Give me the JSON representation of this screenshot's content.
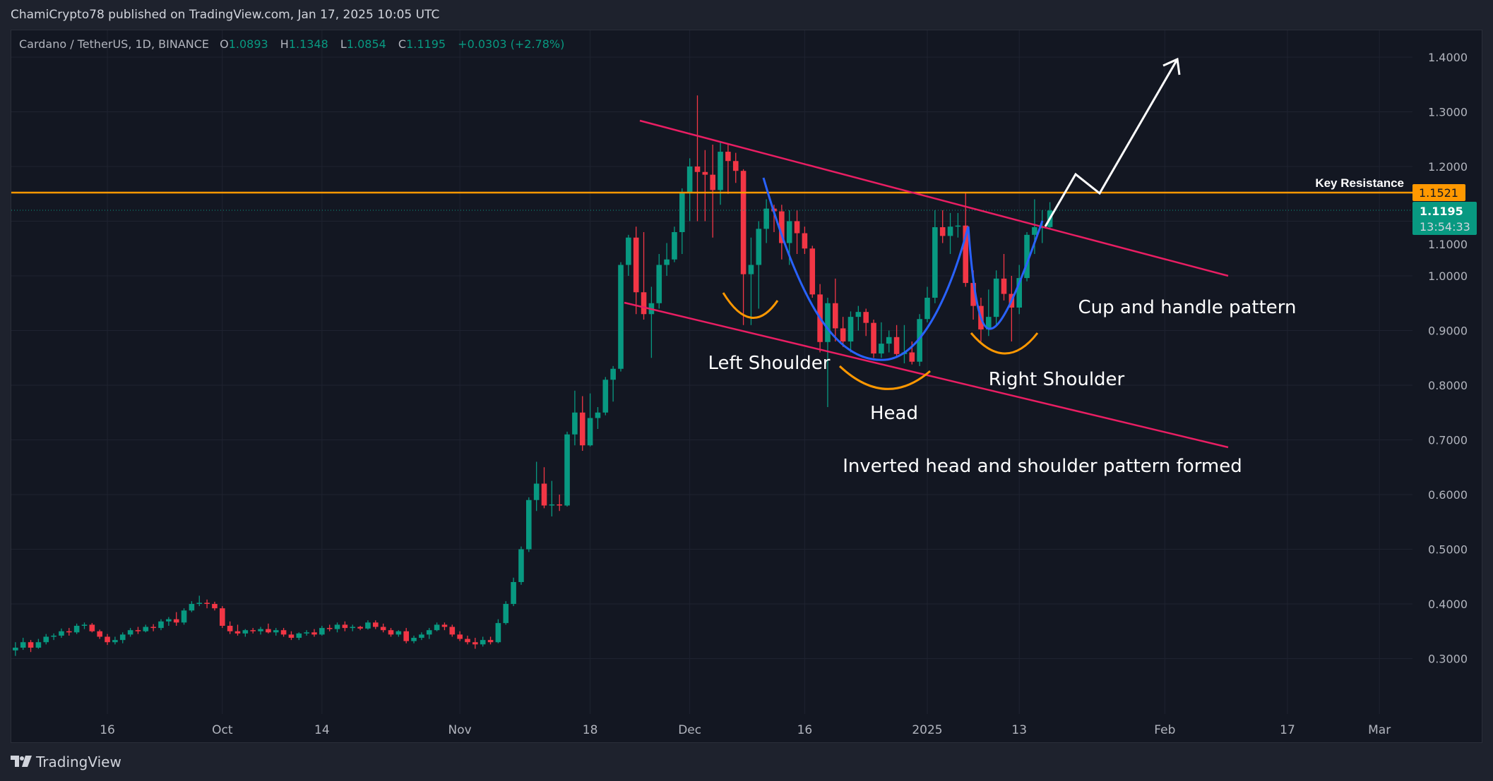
{
  "header": {
    "published": "ChamiCrypto78 published on TradingView.com, Jan 17, 2025 10:05 UTC"
  },
  "legend": {
    "symbol": "Cardano / TetherUS, 1D, BINANCE",
    "o_label": "O",
    "o": "1.0893",
    "h_label": "H",
    "h": "1.1348",
    "l_label": "L",
    "l": "1.0854",
    "c_label": "C",
    "c": "1.1195",
    "change": "+0.0303 (+2.78%)"
  },
  "price_axis": {
    "labels": [
      "1.4000",
      "1.3000",
      "1.2000",
      "1.1000",
      "1.0000",
      "0.9000",
      "0.8000",
      "0.7000",
      "0.6000",
      "0.5000",
      "0.4000",
      "0.3000"
    ],
    "key_level_tag": "1.1521",
    "last_price_tag": "1.1195",
    "countdown": "13:54:33"
  },
  "time_axis": {
    "labels": [
      {
        "text": "16",
        "date": "2024-09-16"
      },
      {
        "text": "Oct",
        "date": "2024-10-01"
      },
      {
        "text": "14",
        "date": "2024-10-14"
      },
      {
        "text": "Nov",
        "date": "2024-11-01"
      },
      {
        "text": "18",
        "date": "2024-11-18"
      },
      {
        "text": "Dec",
        "date": "2024-12-01"
      },
      {
        "text": "16",
        "date": "2024-12-16"
      },
      {
        "text": "2025",
        "date": "2025-01-01"
      },
      {
        "text": "13",
        "date": "2025-01-13"
      },
      {
        "text": "Feb",
        "date": "2025-02-01"
      },
      {
        "text": "17",
        "date": "2025-02-17"
      },
      {
        "text": "Mar",
        "date": "2025-03-01"
      }
    ]
  },
  "annotations": {
    "key_resistance": "Key Resistance",
    "left_shoulder": "Left Shoulder",
    "head": "Head",
    "right_shoulder": "Right Shoulder",
    "cup_handle": "Cup and handle pattern",
    "ihs": "Inverted head and shoulder pattern formed"
  },
  "colors": {
    "up": "#089981",
    "down": "#f23645",
    "resistance": "#ff9800",
    "channel": "#e91e63",
    "cup": "#2962ff",
    "projection": "#ffffff"
  },
  "footer": {
    "brand": "TradingView"
  },
  "chart_data": {
    "type": "candlestick",
    "ylim": [
      0.22,
      1.455
    ],
    "xlim": [
      "2024-09-03",
      "2025-03-12"
    ],
    "grid": true,
    "key_resistance": 1.1521,
    "last_price": 1.1195,
    "candles": [
      [
        "2024-09-04",
        0.315,
        0.33,
        0.305,
        0.32
      ],
      [
        "2024-09-05",
        0.32,
        0.338,
        0.316,
        0.33
      ],
      [
        "2024-09-06",
        0.33,
        0.334,
        0.312,
        0.32
      ],
      [
        "2024-09-07",
        0.32,
        0.336,
        0.318,
        0.33
      ],
      [
        "2024-09-08",
        0.33,
        0.345,
        0.326,
        0.34
      ],
      [
        "2024-09-09",
        0.34,
        0.346,
        0.334,
        0.342
      ],
      [
        "2024-09-10",
        0.342,
        0.355,
        0.338,
        0.35
      ],
      [
        "2024-09-11",
        0.35,
        0.356,
        0.342,
        0.348
      ],
      [
        "2024-09-12",
        0.348,
        0.364,
        0.345,
        0.36
      ],
      [
        "2024-09-13",
        0.36,
        0.366,
        0.354,
        0.362
      ],
      [
        "2024-09-14",
        0.362,
        0.365,
        0.348,
        0.35
      ],
      [
        "2024-09-15",
        0.35,
        0.353,
        0.336,
        0.34
      ],
      [
        "2024-09-16",
        0.34,
        0.345,
        0.325,
        0.33
      ],
      [
        "2024-09-17",
        0.33,
        0.34,
        0.326,
        0.334
      ],
      [
        "2024-09-18",
        0.334,
        0.348,
        0.328,
        0.344
      ],
      [
        "2024-09-19",
        0.344,
        0.356,
        0.34,
        0.352
      ],
      [
        "2024-09-20",
        0.352,
        0.358,
        0.345,
        0.35
      ],
      [
        "2024-09-21",
        0.35,
        0.362,
        0.348,
        0.358
      ],
      [
        "2024-09-22",
        0.358,
        0.363,
        0.35,
        0.356
      ],
      [
        "2024-09-23",
        0.356,
        0.372,
        0.352,
        0.368
      ],
      [
        "2024-09-24",
        0.368,
        0.376,
        0.36,
        0.372
      ],
      [
        "2024-09-25",
        0.372,
        0.385,
        0.36,
        0.366
      ],
      [
        "2024-09-26",
        0.366,
        0.392,
        0.362,
        0.388
      ],
      [
        "2024-09-27",
        0.388,
        0.405,
        0.385,
        0.4
      ],
      [
        "2024-09-28",
        0.4,
        0.415,
        0.396,
        0.402
      ],
      [
        "2024-09-29",
        0.402,
        0.408,
        0.392,
        0.4
      ],
      [
        "2024-09-30",
        0.4,
        0.404,
        0.388,
        0.392
      ],
      [
        "2024-10-01",
        0.392,
        0.396,
        0.356,
        0.36
      ],
      [
        "2024-10-02",
        0.36,
        0.368,
        0.345,
        0.35
      ],
      [
        "2024-10-03",
        0.35,
        0.362,
        0.342,
        0.346
      ],
      [
        "2024-10-04",
        0.346,
        0.354,
        0.34,
        0.352
      ],
      [
        "2024-10-05",
        0.352,
        0.356,
        0.346,
        0.35
      ],
      [
        "2024-10-06",
        0.35,
        0.358,
        0.344,
        0.354
      ],
      [
        "2024-10-07",
        0.354,
        0.364,
        0.346,
        0.348
      ],
      [
        "2024-10-08",
        0.348,
        0.356,
        0.342,
        0.352
      ],
      [
        "2024-10-09",
        0.352,
        0.356,
        0.34,
        0.344
      ],
      [
        "2024-10-10",
        0.344,
        0.35,
        0.334,
        0.338
      ],
      [
        "2024-10-11",
        0.338,
        0.348,
        0.334,
        0.346
      ],
      [
        "2024-10-12",
        0.346,
        0.352,
        0.342,
        0.348
      ],
      [
        "2024-10-13",
        0.348,
        0.354,
        0.34,
        0.344
      ],
      [
        "2024-10-14",
        0.344,
        0.36,
        0.342,
        0.356
      ],
      [
        "2024-10-15",
        0.356,
        0.362,
        0.35,
        0.354
      ],
      [
        "2024-10-16",
        0.354,
        0.366,
        0.348,
        0.362
      ],
      [
        "2024-10-17",
        0.362,
        0.368,
        0.35,
        0.356
      ],
      [
        "2024-10-18",
        0.356,
        0.362,
        0.35,
        0.358
      ],
      [
        "2024-10-19",
        0.358,
        0.36,
        0.352,
        0.355
      ],
      [
        "2024-10-20",
        0.355,
        0.37,
        0.353,
        0.366
      ],
      [
        "2024-10-21",
        0.366,
        0.37,
        0.354,
        0.358
      ],
      [
        "2024-10-22",
        0.358,
        0.364,
        0.348,
        0.352
      ],
      [
        "2024-10-23",
        0.352,
        0.356,
        0.34,
        0.344
      ],
      [
        "2024-10-24",
        0.344,
        0.352,
        0.34,
        0.35
      ],
      [
        "2024-10-25",
        0.35,
        0.356,
        0.328,
        0.332
      ],
      [
        "2024-10-26",
        0.332,
        0.342,
        0.328,
        0.338
      ],
      [
        "2024-10-27",
        0.338,
        0.348,
        0.334,
        0.344
      ],
      [
        "2024-10-28",
        0.344,
        0.356,
        0.336,
        0.352
      ],
      [
        "2024-10-29",
        0.352,
        0.366,
        0.35,
        0.362
      ],
      [
        "2024-10-30",
        0.362,
        0.366,
        0.352,
        0.358
      ],
      [
        "2024-10-31",
        0.358,
        0.362,
        0.34,
        0.344
      ],
      [
        "2024-11-01",
        0.344,
        0.35,
        0.332,
        0.336
      ],
      [
        "2024-11-02",
        0.336,
        0.342,
        0.326,
        0.33
      ],
      [
        "2024-11-03",
        0.33,
        0.338,
        0.318,
        0.326
      ],
      [
        "2024-11-04",
        0.326,
        0.34,
        0.322,
        0.334
      ],
      [
        "2024-11-05",
        0.334,
        0.34,
        0.326,
        0.33
      ],
      [
        "2024-11-06",
        0.33,
        0.372,
        0.328,
        0.365
      ],
      [
        "2024-11-07",
        0.365,
        0.405,
        0.362,
        0.4
      ],
      [
        "2024-11-08",
        0.4,
        0.448,
        0.396,
        0.44
      ],
      [
        "2024-11-09",
        0.44,
        0.505,
        0.435,
        0.5
      ],
      [
        "2024-11-10",
        0.5,
        0.595,
        0.495,
        0.59
      ],
      [
        "2024-11-11",
        0.59,
        0.66,
        0.57,
        0.62
      ],
      [
        "2024-11-12",
        0.62,
        0.65,
        0.575,
        0.58
      ],
      [
        "2024-11-13",
        0.58,
        0.625,
        0.56,
        0.582
      ],
      [
        "2024-11-14",
        0.582,
        0.6,
        0.57,
        0.58
      ],
      [
        "2024-11-15",
        0.58,
        0.715,
        0.578,
        0.71
      ],
      [
        "2024-11-16",
        0.71,
        0.79,
        0.69,
        0.75
      ],
      [
        "2024-11-17",
        0.75,
        0.78,
        0.68,
        0.69
      ],
      [
        "2024-11-18",
        0.69,
        0.785,
        0.688,
        0.74
      ],
      [
        "2024-11-19",
        0.74,
        0.76,
        0.72,
        0.75
      ],
      [
        "2024-11-20",
        0.75,
        0.815,
        0.745,
        0.81
      ],
      [
        "2024-11-21",
        0.81,
        0.835,
        0.77,
        0.83
      ],
      [
        "2024-11-22",
        0.83,
        1.025,
        0.825,
        1.02
      ],
      [
        "2024-11-23",
        1.02,
        1.075,
        1.0,
        1.07
      ],
      [
        "2024-11-24",
        1.07,
        1.09,
        0.93,
        0.97
      ],
      [
        "2024-11-25",
        0.97,
        1.08,
        0.92,
        0.93
      ],
      [
        "2024-11-26",
        0.93,
        0.98,
        0.85,
        0.95
      ],
      [
        "2024-11-27",
        0.95,
        1.04,
        0.94,
        1.02
      ],
      [
        "2024-11-28",
        1.02,
        1.06,
        1.0,
        1.03
      ],
      [
        "2024-11-29",
        1.03,
        1.09,
        1.025,
        1.08
      ],
      [
        "2024-11-30",
        1.08,
        1.16,
        1.04,
        1.152
      ],
      [
        "2024-12-01",
        1.152,
        1.215,
        1.1,
        1.2
      ],
      [
        "2024-12-02",
        1.2,
        1.33,
        1.1,
        1.19
      ],
      [
        "2024-12-03",
        1.19,
        1.23,
        1.1,
        1.185
      ],
      [
        "2024-12-04",
        1.185,
        1.24,
        1.07,
        1.157
      ],
      [
        "2024-12-05",
        1.157,
        1.245,
        1.13,
        1.227
      ],
      [
        "2024-12-06",
        1.227,
        1.24,
        1.15,
        1.21
      ],
      [
        "2024-12-07",
        1.21,
        1.225,
        1.17,
        1.192
      ],
      [
        "2024-12-08",
        1.192,
        1.195,
        0.91,
        1.003
      ],
      [
        "2024-12-09",
        1.003,
        1.07,
        0.91,
        1.02
      ],
      [
        "2024-12-10",
        1.02,
        1.1,
        0.94,
        1.086
      ],
      [
        "2024-12-11",
        1.086,
        1.14,
        1.06,
        1.123
      ],
      [
        "2024-12-12",
        1.123,
        1.13,
        1.08,
        1.118
      ],
      [
        "2024-12-13",
        1.118,
        1.13,
        1.03,
        1.06
      ],
      [
        "2024-12-14",
        1.06,
        1.12,
        1.02,
        1.1
      ],
      [
        "2024-12-15",
        1.1,
        1.12,
        1.04,
        1.078
      ],
      [
        "2024-12-16",
        1.078,
        1.09,
        1.04,
        1.05
      ],
      [
        "2024-12-17",
        1.05,
        1.055,
        0.96,
        0.966
      ],
      [
        "2024-12-18",
        0.966,
        0.985,
        0.86,
        0.879
      ],
      [
        "2024-12-19",
        0.879,
        0.96,
        0.76,
        0.95
      ],
      [
        "2024-12-20",
        0.95,
        0.995,
        0.88,
        0.904
      ],
      [
        "2024-12-21",
        0.904,
        0.925,
        0.87,
        0.88
      ],
      [
        "2024-12-22",
        0.88,
        0.935,
        0.86,
        0.925
      ],
      [
        "2024-12-23",
        0.925,
        0.945,
        0.9,
        0.934
      ],
      [
        "2024-12-24",
        0.934,
        0.94,
        0.89,
        0.914
      ],
      [
        "2024-12-25",
        0.914,
        0.92,
        0.85,
        0.858
      ],
      [
        "2024-12-26",
        0.858,
        0.915,
        0.85,
        0.876
      ],
      [
        "2024-12-27",
        0.876,
        0.9,
        0.86,
        0.888
      ],
      [
        "2024-12-28",
        0.888,
        0.91,
        0.85,
        0.857
      ],
      [
        "2024-12-29",
        0.857,
        0.91,
        0.84,
        0.86
      ],
      [
        "2024-12-30",
        0.86,
        0.88,
        0.838,
        0.843
      ],
      [
        "2024-12-31",
        0.843,
        0.93,
        0.835,
        0.921
      ],
      [
        "2025-01-01",
        0.921,
        0.98,
        0.915,
        0.96
      ],
      [
        "2025-01-02",
        0.96,
        1.12,
        0.95,
        1.089
      ],
      [
        "2025-01-03",
        1.089,
        1.12,
        1.06,
        1.073
      ],
      [
        "2025-01-04",
        1.073,
        1.115,
        1.04,
        1.09
      ],
      [
        "2025-01-05",
        1.09,
        1.115,
        1.07,
        1.092
      ],
      [
        "2025-01-06",
        1.092,
        1.152,
        0.98,
        0.987
      ],
      [
        "2025-01-07",
        0.987,
        1.01,
        0.92,
        0.945
      ],
      [
        "2025-01-08",
        0.945,
        0.96,
        0.88,
        0.902
      ],
      [
        "2025-01-09",
        0.902,
        0.975,
        0.89,
        0.925
      ],
      [
        "2025-01-10",
        0.925,
        1.01,
        0.91,
        0.995
      ],
      [
        "2025-01-11",
        0.995,
        1.04,
        0.955,
        0.967
      ],
      [
        "2025-01-12",
        0.967,
        1.0,
        0.88,
        0.942
      ],
      [
        "2025-01-13",
        0.942,
        1.02,
        0.93,
        0.996
      ],
      [
        "2025-01-14",
        0.996,
        1.08,
        0.99,
        1.075
      ],
      [
        "2025-01-15",
        1.075,
        1.14,
        1.04,
        1.089
      ],
      [
        "2025-01-16",
        1.089,
        1.12,
        1.06,
        1.0893
      ],
      [
        "2025-01-17",
        1.0893,
        1.1348,
        1.0854,
        1.1195
      ]
    ]
  }
}
